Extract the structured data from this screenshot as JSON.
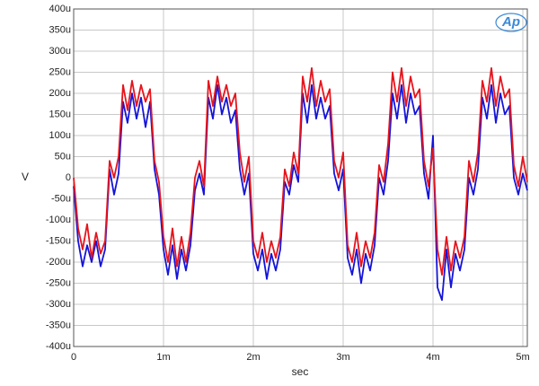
{
  "chart_data": {
    "type": "line",
    "logo": "Ap",
    "xlabel": "sec",
    "ylabel": "V",
    "grid": true,
    "xlim": [
      0,
      0.00505
    ],
    "ylim": [
      -0.0004,
      0.0004
    ],
    "xticks": [
      0,
      {
        "value": 0.001,
        "label": "1m"
      },
      {
        "value": 0.002,
        "label": "2m"
      },
      {
        "value": 0.003,
        "label": "3m"
      },
      {
        "value": 0.004,
        "label": "4m"
      },
      {
        "value": 0.005,
        "label": "5m"
      }
    ],
    "yticks": [
      {
        "value": -0.0004,
        "label": "-400u"
      },
      {
        "value": -0.00035,
        "label": "-350u"
      },
      {
        "value": -0.0003,
        "label": "-300u"
      },
      {
        "value": -0.00025,
        "label": "-250u"
      },
      {
        "value": -0.0002,
        "label": "-200u"
      },
      {
        "value": -0.00015,
        "label": "-150u"
      },
      {
        "value": -0.0001,
        "label": "-100u"
      },
      {
        "value": -5e-05,
        "label": "-50u"
      },
      0,
      {
        "value": 5e-05,
        "label": "50u"
      },
      {
        "value": 0.0001,
        "label": "100u"
      },
      {
        "value": 0.00015,
        "label": "150u"
      },
      {
        "value": 0.0002,
        "label": "200u"
      },
      {
        "value": 0.00025,
        "label": "250u"
      },
      {
        "value": 0.0003,
        "label": "300u"
      },
      {
        "value": 0.00035,
        "label": "350u"
      },
      {
        "value": 0.0004,
        "label": "400u"
      }
    ],
    "x": [
      0,
      5e-05,
      0.0001,
      0.00015,
      0.0002,
      0.00025,
      0.0003,
      0.00035,
      0.0004,
      0.00045,
      0.0005,
      0.00055,
      0.0006,
      0.00065,
      0.0007,
      0.00075,
      0.0008,
      0.00085,
      0.0009,
      0.00095,
      0.001,
      0.00105,
      0.0011,
      0.00115,
      0.0012,
      0.00125,
      0.0013,
      0.00135,
      0.0014,
      0.00145,
      0.0015,
      0.00155,
      0.0016,
      0.00165,
      0.0017,
      0.00175,
      0.0018,
      0.00185,
      0.0019,
      0.00195,
      0.002,
      0.00205,
      0.0021,
      0.00215,
      0.0022,
      0.00225,
      0.0023,
      0.00235,
      0.0024,
      0.00245,
      0.0025,
      0.00255,
      0.0026,
      0.00265,
      0.0027,
      0.00275,
      0.0028,
      0.00285,
      0.0029,
      0.00295,
      0.003,
      0.00305,
      0.0031,
      0.00315,
      0.0032,
      0.00325,
      0.0033,
      0.00335,
      0.0034,
      0.00345,
      0.0035,
      0.00355,
      0.0036,
      0.00365,
      0.0037,
      0.00375,
      0.0038,
      0.00385,
      0.0039,
      0.00395,
      0.004,
      0.00405,
      0.0041,
      0.00415,
      0.0042,
      0.00425,
      0.0043,
      0.00435,
      0.0044,
      0.00445,
      0.0045,
      0.00455,
      0.0046,
      0.00465,
      0.0047,
      0.00475,
      0.0048,
      0.00485,
      0.0049,
      0.00495,
      0.005,
      0.00505
    ],
    "series": [
      {
        "color": "#1414d8",
        "values": [
          -2e-05,
          -0.00015,
          -0.00021,
          -0.00016,
          -0.0002,
          -0.00015,
          -0.00021,
          -0.00017,
          2e-05,
          -4e-05,
          1e-05,
          0.00018,
          0.00013,
          0.0002,
          0.00014,
          0.00019,
          0.00012,
          0.00018,
          2e-05,
          -4e-05,
          -0.00017,
          -0.00023,
          -0.00016,
          -0.00024,
          -0.00017,
          -0.00022,
          -0.00016,
          -3e-05,
          1e-05,
          -4e-05,
          0.00019,
          0.00014,
          0.00022,
          0.00015,
          0.00019,
          0.00013,
          0.00016,
          2e-05,
          -4e-05,
          1e-05,
          -0.00018,
          -0.00022,
          -0.00017,
          -0.00024,
          -0.00018,
          -0.00022,
          -0.00017,
          -1e-05,
          -4e-05,
          3e-05,
          -1e-05,
          0.0002,
          0.00013,
          0.00022,
          0.00014,
          0.00019,
          0.00014,
          0.00017,
          1e-05,
          -3e-05,
          2e-05,
          -0.00019,
          -0.00023,
          -0.00017,
          -0.00025,
          -0.00018,
          -0.00022,
          -0.00016,
          0,
          -4e-05,
          4e-05,
          0.0002,
          0.00014,
          0.00022,
          0.00013,
          0.0002,
          0.00015,
          0.00017,
          1e-05,
          -5e-05,
          0.0001,
          -0.00026,
          -0.00029,
          -0.00017,
          -0.00026,
          -0.00018,
          -0.00022,
          -0.00017,
          0,
          -4e-05,
          2e-05,
          0.00019,
          0.00014,
          0.00022,
          0.00013,
          0.0002,
          0.00015,
          0.00017,
          0,
          -4e-05,
          1e-05,
          -3e-05
        ]
      },
      {
        "color": "#e6141c",
        "values": [
          0,
          -0.00012,
          -0.00017,
          -0.00011,
          -0.00019,
          -0.00013,
          -0.00018,
          -0.00015,
          4e-05,
          0,
          5e-05,
          0.00022,
          0.00016,
          0.00023,
          0.00017,
          0.00022,
          0.00018,
          0.00021,
          4e-05,
          -1e-05,
          -0.00014,
          -0.0002,
          -0.00012,
          -0.00021,
          -0.00014,
          -0.0002,
          -0.00013,
          0,
          4e-05,
          -2e-05,
          0.00023,
          0.00017,
          0.00024,
          0.00018,
          0.00022,
          0.00017,
          0.0002,
          6e-05,
          -1e-05,
          5e-05,
          -0.00015,
          -0.00019,
          -0.00013,
          -0.0002,
          -0.00015,
          -0.00019,
          -0.00014,
          2e-05,
          -2e-05,
          6e-05,
          1e-05,
          0.00024,
          0.00018,
          0.00026,
          0.00017,
          0.00023,
          0.00018,
          0.00021,
          4e-05,
          0,
          6e-05,
          -0.00016,
          -0.0002,
          -0.00013,
          -0.00021,
          -0.00015,
          -0.00019,
          -0.00013,
          3e-05,
          -1e-05,
          8e-05,
          0.00025,
          0.00018,
          0.00026,
          0.00017,
          0.00024,
          0.00019,
          0.00021,
          4e-05,
          -2e-05,
          7e-05,
          -0.00017,
          -0.00023,
          -0.00014,
          -0.00022,
          -0.00015,
          -0.00019,
          -0.00014,
          4e-05,
          -1e-05,
          6e-05,
          0.00023,
          0.00018,
          0.00026,
          0.00017,
          0.00024,
          0.00019,
          0.00021,
          3e-05,
          -2e-05,
          5e-05,
          -1e-05
        ]
      }
    ]
  }
}
